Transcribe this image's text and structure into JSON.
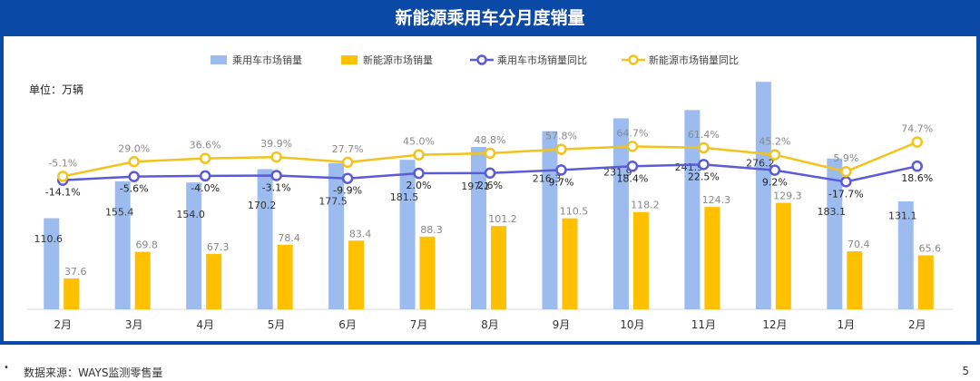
{
  "title": "新能源乘用车分月度销量",
  "unit_label": "单位：万辆",
  "footer": {
    "bullet": "•",
    "source": "数据来源：WAYS监测零售量",
    "page": "5"
  },
  "colors": {
    "header": "#0b49a6",
    "bar1": "#9cbcf0",
    "bar2": "#ffc000",
    "line1": "#5b5bd6",
    "line2": "#f2c31d"
  },
  "chart_data": {
    "type": "bar",
    "categories": [
      "2月",
      "3月",
      "4月",
      "5月",
      "6月",
      "7月",
      "8月",
      "9月",
      "10月",
      "11月",
      "12月",
      "1月",
      "2月"
    ],
    "series": [
      {
        "name": "乘用车市场销量",
        "kind": "bar",
        "values": [
          110.6,
          155.4,
          154.0,
          170.2,
          177.5,
          181.5,
          197.1,
          216.3,
          231.9,
          241.9,
          276.2,
          183.1,
          131.1
        ],
        "labels": [
          "110.6",
          "155.4",
          "154.0",
          "170.2",
          "177.5",
          "181.5",
          "197.1",
          "216.3",
          "231.9",
          "241.9",
          "276.2",
          "183.1",
          "131.1"
        ]
      },
      {
        "name": "新能源市场销量",
        "kind": "bar",
        "values": [
          37.6,
          69.8,
          67.3,
          78.4,
          83.4,
          88.3,
          101.2,
          110.5,
          118.2,
          124.3,
          129.3,
          70.4,
          65.6
        ],
        "labels": [
          "37.6",
          "69.8",
          "67.3",
          "78.4",
          "83.4",
          "88.3",
          "101.2",
          "110.5",
          "118.2",
          "124.3",
          "129.3",
          "70.4",
          "65.6"
        ]
      },
      {
        "name": "乘用车市场销量同比",
        "kind": "line",
        "values": [
          -14.1,
          -5.6,
          -4.0,
          -3.1,
          -9.9,
          2.0,
          2.6,
          9.7,
          18.4,
          22.5,
          9.2,
          -17.7,
          18.6
        ],
        "labels": [
          "-14.1%",
          "-5.6%",
          "-4.0%",
          "-3.1%",
          "-9.9%",
          "2.0%",
          "2.6%",
          "9.7%",
          "18.4%",
          "22.5%",
          "9.2%",
          "-17.7%",
          "18.6%"
        ]
      },
      {
        "name": "新能源市场销量同比",
        "kind": "line",
        "values": [
          -5.1,
          29.0,
          36.6,
          39.9,
          27.7,
          45.0,
          48.8,
          57.8,
          64.7,
          61.4,
          45.2,
          5.9,
          74.7
        ],
        "labels": [
          "-5.1%",
          "29.0%",
          "36.6%",
          "39.9%",
          "27.7%",
          "45.0%",
          "48.8%",
          "57.8%",
          "64.7%",
          "61.4%",
          "45.2%",
          "5.9%",
          "74.7%"
        ]
      }
    ],
    "legend_position": "top-center"
  }
}
